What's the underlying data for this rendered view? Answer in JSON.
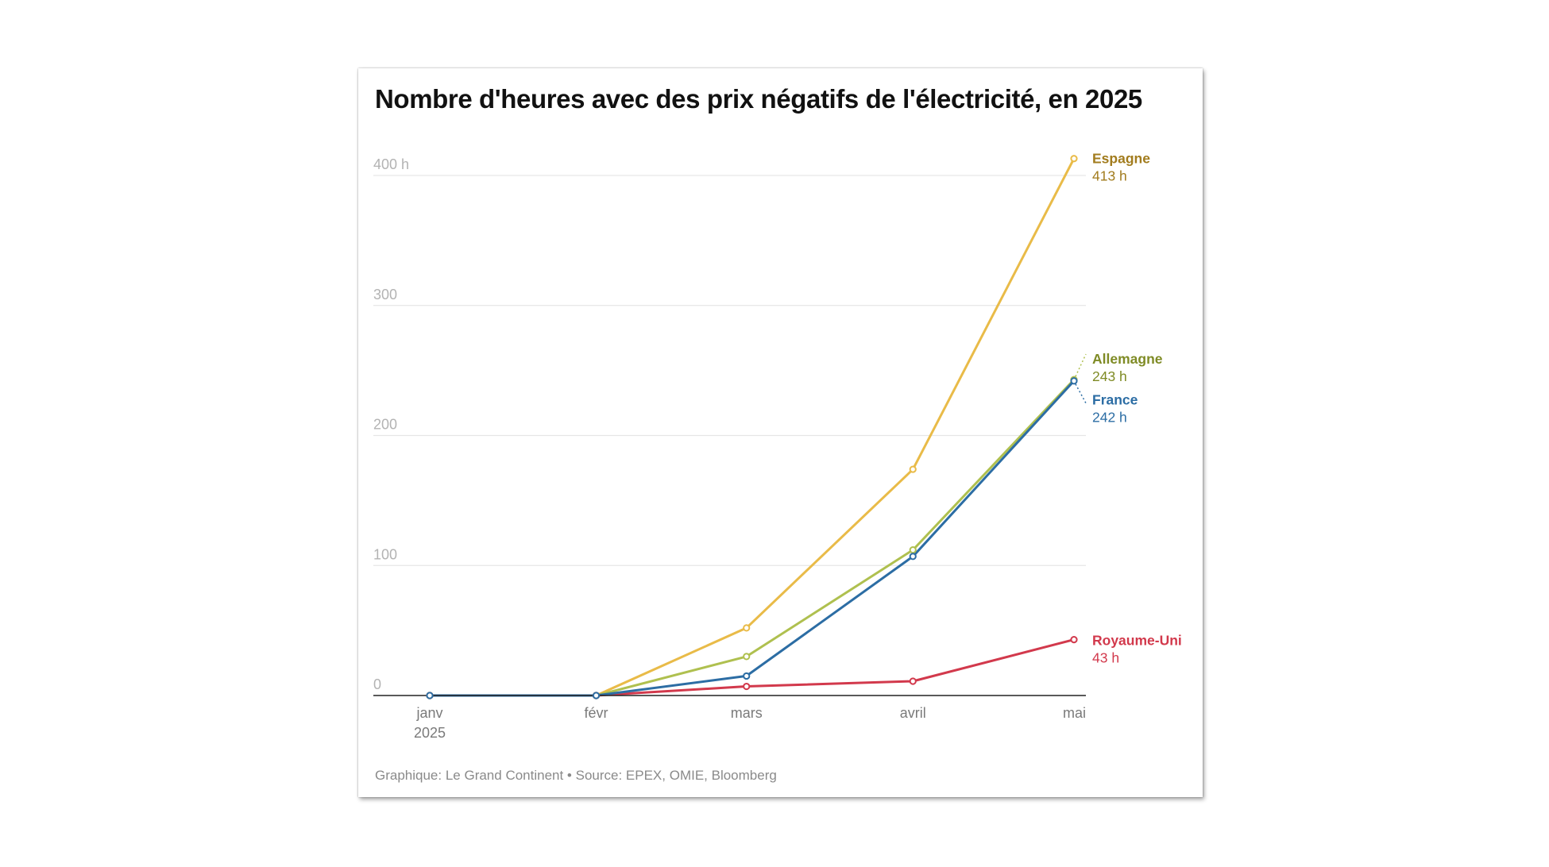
{
  "title": "Nombre d'heures avec des prix négatifs de l'électricité, en 2025",
  "footer": "Graphique: Le Grand Continent • Source: EPEX, OMIE, Bloomberg",
  "chart_data": {
    "type": "line",
    "title": "Nombre d'heures avec des prix négatifs de l'électricité, en 2025",
    "xlabel": "",
    "ylabel": "",
    "x": [
      "janv 2025",
      "févr",
      "mars",
      "avril",
      "mai"
    ],
    "x_tick_labels": [
      {
        "line1": "janv",
        "line2": "2025"
      },
      {
        "line1": "févr",
        "line2": ""
      },
      {
        "line1": "mars",
        "line2": ""
      },
      {
        "line1": "avril",
        "line2": ""
      },
      {
        "line1": "mai",
        "line2": ""
      }
    ],
    "x_days": [
      0,
      31,
      59,
      90,
      120
    ],
    "ylim": [
      0,
      413
    ],
    "y_ticks": [
      {
        "value": 0,
        "label": "0"
      },
      {
        "value": 100,
        "label": "100"
      },
      {
        "value": 200,
        "label": "200"
      },
      {
        "value": 300,
        "label": "300"
      },
      {
        "value": 400,
        "label": "400 h"
      }
    ],
    "grid": true,
    "legend": "direct labels at line ends (right)",
    "series": [
      {
        "name": "Espagne",
        "end_label": "413 h",
        "values": [
          0,
          0,
          52,
          174,
          413
        ],
        "line_color": "#E9BB48",
        "label_color": "#A27C1E"
      },
      {
        "name": "Allemagne",
        "end_label": "243 h",
        "values": [
          0,
          0,
          30,
          112,
          243
        ],
        "line_color": "#AFC04F",
        "label_color": "#7F8B25"
      },
      {
        "name": "France",
        "end_label": "242 h",
        "values": [
          0,
          0,
          15,
          107,
          242
        ],
        "line_color": "#2C6DA4",
        "label_color": "#2C6DA4"
      },
      {
        "name": "Royaume-Uni",
        "end_label": "43 h",
        "values": [
          0,
          0,
          7,
          11,
          43
        ],
        "line_color": "#D2394C",
        "label_color": "#D2394C"
      }
    ]
  }
}
